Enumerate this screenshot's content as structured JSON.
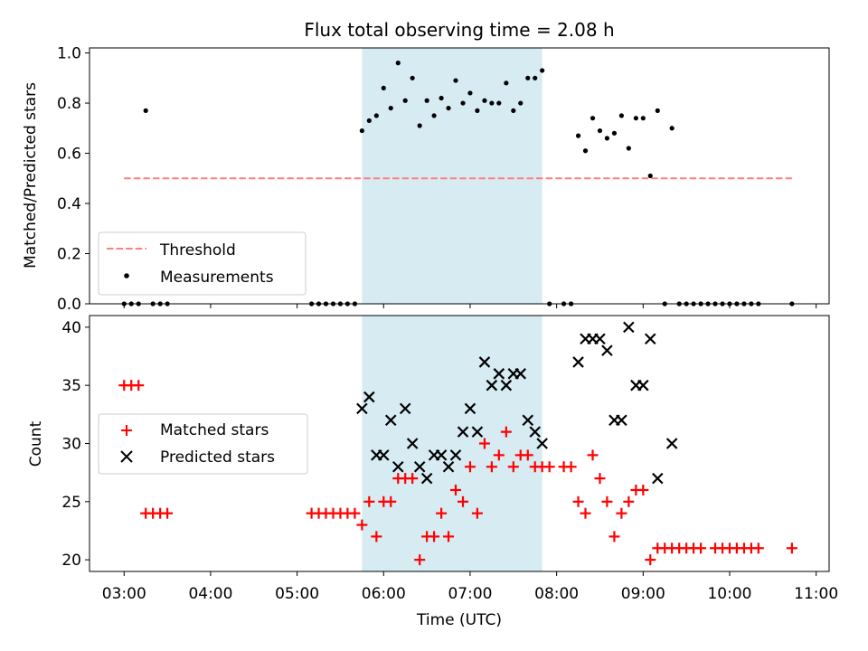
{
  "chart_data": [
    {
      "type": "scatter",
      "title": "Flux total observing time = 2.08 h",
      "ylabel": "Matched/Predicted stars",
      "xlabel": "",
      "x_unit": "hours UTC",
      "xlim": [
        2.6,
        11.15
      ],
      "ylim": [
        0,
        1.02
      ],
      "y_ticks": [
        0,
        0.2,
        0.4,
        0.6,
        0.8,
        1.0
      ],
      "y_tick_labels": [
        "0.0",
        "0.2",
        "0.4",
        "0.6",
        "0.8",
        "1.0"
      ],
      "grid": false,
      "legend_position": "lower-left",
      "shaded_interval": [
        5.75,
        7.833
      ],
      "shade_color": "#add8e6",
      "threshold": {
        "name": "Threshold",
        "y": 0.5,
        "x_range": [
          3.0,
          10.72
        ],
        "color": "#ff7f7f",
        "style": "dashed"
      },
      "series": [
        {
          "name": "Measurements",
          "color": "#000000",
          "marker": "dot",
          "points": [
            [
              3.0,
              0
            ],
            [
              3.083,
              0
            ],
            [
              3.167,
              0
            ],
            [
              3.25,
              0.77
            ],
            [
              3.333,
              0
            ],
            [
              3.417,
              0
            ],
            [
              3.5,
              0
            ],
            [
              5.167,
              0
            ],
            [
              5.25,
              0
            ],
            [
              5.333,
              0
            ],
            [
              5.417,
              0
            ],
            [
              5.5,
              0
            ],
            [
              5.583,
              0
            ],
            [
              5.667,
              0
            ],
            [
              5.75,
              0.69
            ],
            [
              5.833,
              0.73
            ],
            [
              5.917,
              0.75
            ],
            [
              6.0,
              0.86
            ],
            [
              6.083,
              0.78
            ],
            [
              6.167,
              0.96
            ],
            [
              6.25,
              0.81
            ],
            [
              6.333,
              0.9
            ],
            [
              6.417,
              0.71
            ],
            [
              6.5,
              0.81
            ],
            [
              6.583,
              0.75
            ],
            [
              6.667,
              0.82
            ],
            [
              6.75,
              0.78
            ],
            [
              6.833,
              0.89
            ],
            [
              6.917,
              0.8
            ],
            [
              7.0,
              0.84
            ],
            [
              7.083,
              0.77
            ],
            [
              7.167,
              0.81
            ],
            [
              7.25,
              0.8
            ],
            [
              7.333,
              0.8
            ],
            [
              7.417,
              0.88
            ],
            [
              7.5,
              0.77
            ],
            [
              7.583,
              0.8
            ],
            [
              7.667,
              0.9
            ],
            [
              7.75,
              0.9
            ],
            [
              7.833,
              0.93
            ],
            [
              7.917,
              0
            ],
            [
              8.083,
              0
            ],
            [
              8.167,
              0
            ],
            [
              8.25,
              0.67
            ],
            [
              8.333,
              0.61
            ],
            [
              8.417,
              0.74
            ],
            [
              8.5,
              0.69
            ],
            [
              8.583,
              0.66
            ],
            [
              8.667,
              0.68
            ],
            [
              8.75,
              0.75
            ],
            [
              8.833,
              0.62
            ],
            [
              8.917,
              0.74
            ],
            [
              9.0,
              0.74
            ],
            [
              9.083,
              0.51
            ],
            [
              9.167,
              0.77
            ],
            [
              9.333,
              0.7
            ],
            [
              9.25,
              0
            ],
            [
              9.417,
              0
            ],
            [
              9.5,
              0
            ],
            [
              9.583,
              0
            ],
            [
              9.667,
              0
            ],
            [
              9.75,
              0
            ],
            [
              9.833,
              0
            ],
            [
              9.917,
              0
            ],
            [
              10.0,
              0
            ],
            [
              10.083,
              0
            ],
            [
              10.167,
              0
            ],
            [
              10.25,
              0
            ],
            [
              10.333,
              0
            ],
            [
              10.72,
              0
            ]
          ]
        }
      ]
    },
    {
      "type": "scatter",
      "title": "",
      "ylabel": "Count",
      "xlabel": "Time (UTC)",
      "x_unit": "hours UTC",
      "xlim": [
        2.6,
        11.15
      ],
      "ylim": [
        19,
        41
      ],
      "x_ticks": [
        3,
        4,
        5,
        6,
        7,
        8,
        9,
        10,
        11
      ],
      "x_tick_labels": [
        "03:00",
        "04:00",
        "05:00",
        "06:00",
        "07:00",
        "08:00",
        "09:00",
        "10:00",
        "11:00"
      ],
      "y_ticks": [
        20,
        25,
        30,
        35,
        40
      ],
      "y_tick_labels": [
        "20",
        "25",
        "30",
        "35",
        "40"
      ],
      "grid": false,
      "legend_position": "center-left",
      "shaded_interval": [
        5.75,
        7.833
      ],
      "series": [
        {
          "name": "Matched stars",
          "color": "#ff0000",
          "marker": "plus",
          "points": [
            [
              3.0,
              35
            ],
            [
              3.083,
              35
            ],
            [
              3.167,
              35
            ],
            [
              3.25,
              24
            ],
            [
              3.333,
              24
            ],
            [
              3.417,
              24
            ],
            [
              3.5,
              24
            ],
            [
              5.167,
              24
            ],
            [
              5.25,
              24
            ],
            [
              5.333,
              24
            ],
            [
              5.417,
              24
            ],
            [
              5.5,
              24
            ],
            [
              5.583,
              24
            ],
            [
              5.667,
              24
            ],
            [
              5.75,
              23
            ],
            [
              5.833,
              25
            ],
            [
              5.917,
              22
            ],
            [
              6.0,
              25
            ],
            [
              6.083,
              25
            ],
            [
              6.167,
              27
            ],
            [
              6.25,
              27
            ],
            [
              6.333,
              27
            ],
            [
              6.417,
              20
            ],
            [
              6.5,
              22
            ],
            [
              6.583,
              22
            ],
            [
              6.667,
              24
            ],
            [
              6.75,
              22
            ],
            [
              6.833,
              26
            ],
            [
              6.917,
              25
            ],
            [
              7.0,
              28
            ],
            [
              7.083,
              24
            ],
            [
              7.167,
              30
            ],
            [
              7.25,
              28
            ],
            [
              7.333,
              29
            ],
            [
              7.417,
              31
            ],
            [
              7.5,
              28
            ],
            [
              7.583,
              29
            ],
            [
              7.667,
              29
            ],
            [
              7.75,
              28
            ],
            [
              7.833,
              28
            ],
            [
              7.917,
              28
            ],
            [
              8.083,
              28
            ],
            [
              8.167,
              28
            ],
            [
              8.25,
              25
            ],
            [
              8.333,
              24
            ],
            [
              8.417,
              29
            ],
            [
              8.5,
              27
            ],
            [
              8.583,
              25
            ],
            [
              8.667,
              22
            ],
            [
              8.75,
              24
            ],
            [
              8.833,
              25
            ],
            [
              8.917,
              26
            ],
            [
              9.0,
              26
            ],
            [
              9.083,
              20
            ],
            [
              9.167,
              21
            ],
            [
              9.25,
              21
            ],
            [
              9.333,
              21
            ],
            [
              9.417,
              21
            ],
            [
              9.5,
              21
            ],
            [
              9.583,
              21
            ],
            [
              9.667,
              21
            ],
            [
              9.833,
              21
            ],
            [
              9.917,
              21
            ],
            [
              10.0,
              21
            ],
            [
              10.083,
              21
            ],
            [
              10.167,
              21
            ],
            [
              10.25,
              21
            ],
            [
              10.333,
              21
            ],
            [
              10.72,
              21
            ]
          ]
        },
        {
          "name": "Predicted stars",
          "color": "#000000",
          "marker": "x",
          "points": [
            [
              5.75,
              33
            ],
            [
              5.833,
              34
            ],
            [
              5.917,
              29
            ],
            [
              6.0,
              29
            ],
            [
              6.083,
              32
            ],
            [
              6.167,
              28
            ],
            [
              6.25,
              33
            ],
            [
              6.333,
              30
            ],
            [
              6.417,
              28
            ],
            [
              6.5,
              27
            ],
            [
              6.583,
              29
            ],
            [
              6.667,
              29
            ],
            [
              6.75,
              28
            ],
            [
              6.833,
              29
            ],
            [
              6.917,
              31
            ],
            [
              7.0,
              33
            ],
            [
              7.083,
              31
            ],
            [
              7.167,
              37
            ],
            [
              7.25,
              35
            ],
            [
              7.333,
              36
            ],
            [
              7.417,
              35
            ],
            [
              7.5,
              36
            ],
            [
              7.583,
              36
            ],
            [
              7.667,
              32
            ],
            [
              7.75,
              31
            ],
            [
              7.833,
              30
            ],
            [
              8.25,
              37
            ],
            [
              8.333,
              39
            ],
            [
              8.417,
              39
            ],
            [
              8.5,
              39
            ],
            [
              8.583,
              38
            ],
            [
              8.667,
              32
            ],
            [
              8.75,
              32
            ],
            [
              8.833,
              40
            ],
            [
              8.917,
              35
            ],
            [
              9.0,
              35
            ],
            [
              9.083,
              39
            ],
            [
              9.167,
              27
            ],
            [
              9.333,
              30
            ]
          ]
        }
      ]
    }
  ]
}
